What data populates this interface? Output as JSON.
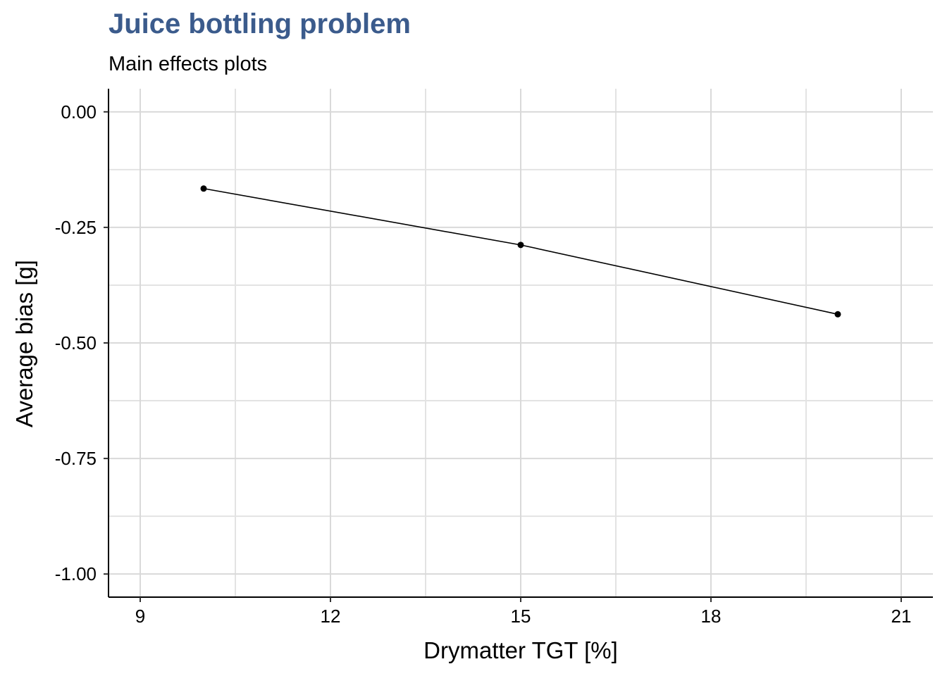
{
  "chart_data": {
    "type": "line",
    "title": "Juice bottling problem",
    "subtitle": "Main effects plots",
    "xlabel": "Drymatter TGT [%]",
    "ylabel": "Average bias [g]",
    "x": [
      10,
      15,
      20
    ],
    "series": [
      {
        "values": [
          -0.166,
          -0.288,
          -0.438
        ]
      }
    ],
    "xlim": [
      8.5,
      21.5
    ],
    "ylim": [
      -1.05,
      0.05
    ],
    "xticks": [
      9,
      12,
      15,
      18,
      21
    ],
    "xtick_labels": [
      "9",
      "12",
      "15",
      "18",
      "21"
    ],
    "yticks": [
      0,
      -0.25,
      -0.5,
      -0.75,
      -1
    ],
    "ytick_labels": [
      "0.00",
      "-0.25",
      "-0.50",
      "-0.75",
      "-1.00"
    ],
    "grid": true,
    "colors": {
      "title": "#3b5b8c",
      "line": "#000000",
      "grid": "#d9d9d9"
    }
  }
}
